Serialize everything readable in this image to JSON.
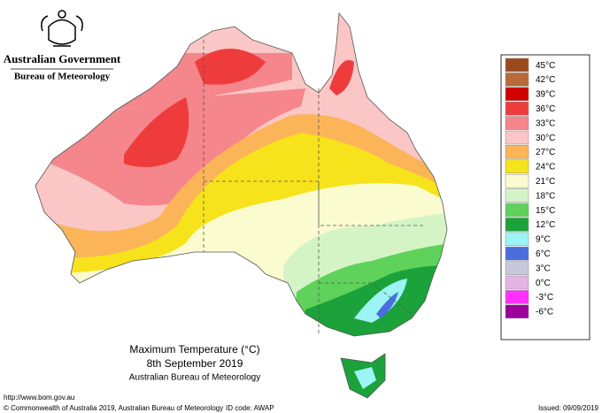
{
  "header": {
    "government": "Australian Government",
    "agency": "Bureau of Meteorology"
  },
  "title": {
    "line1": "Maximum Temperature (°C)",
    "line2": "8th September 2019",
    "line3": "Australian Bureau of Meteorology"
  },
  "legend": {
    "items": [
      {
        "label": "45°C",
        "color": "#9c4a1c"
      },
      {
        "label": "42°C",
        "color": "#b86a38"
      },
      {
        "label": "39°C",
        "color": "#d20000"
      },
      {
        "label": "36°C",
        "color": "#ee3c3c"
      },
      {
        "label": "33°C",
        "color": "#f4868c"
      },
      {
        "label": "30°C",
        "color": "#fbc6c6"
      },
      {
        "label": "27°C",
        "color": "#fbb458"
      },
      {
        "label": "24°C",
        "color": "#f6e31c"
      },
      {
        "label": "21°C",
        "color": "#fbfbd0"
      },
      {
        "label": "18°C",
        "color": "#d4f4c6"
      },
      {
        "label": "15°C",
        "color": "#5ed25a"
      },
      {
        "label": "12°C",
        "color": "#1ca23a"
      },
      {
        "label": "9°C",
        "color": "#9cf4f4"
      },
      {
        "label": "6°C",
        "color": "#4a6ee0"
      },
      {
        "label": "3°C",
        "color": "#c8c8dc"
      },
      {
        "label": "0°C",
        "color": "#e4b4e4"
      },
      {
        "label": "-3°C",
        "color": "#ff30ff"
      },
      {
        "label": "-6°C",
        "color": "#9c009c"
      }
    ]
  },
  "footer": {
    "url": "http://www.bom.gov.au",
    "copyright": "© Commonwealth of Australia 2019, Australian Bureau of Meteorology",
    "id_code": "ID code: AWAP",
    "issued": "Issued: 09/09/2019"
  }
}
